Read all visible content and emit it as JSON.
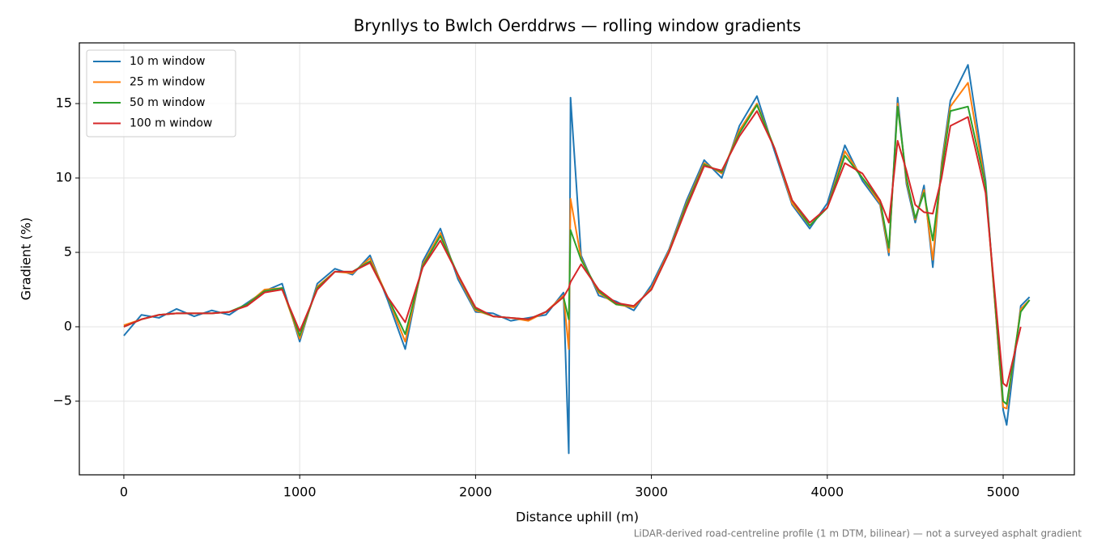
{
  "chart_data": {
    "type": "line",
    "title": "Brynllys to Bwlch Oerddrws — rolling window gradients",
    "x_label": "Distance uphill (m)",
    "y_label": "Gradient (%)",
    "footnote": "LiDAR-derived road-centreline profile (1 m DTM, bilinear) — not a surveyed asphalt gradient",
    "x": [
      0,
      100,
      200,
      300,
      400,
      500,
      600,
      700,
      800,
      900,
      1000,
      1100,
      1200,
      1300,
      1400,
      1500,
      1600,
      1700,
      1800,
      1900,
      2000,
      2100,
      2200,
      2300,
      2400,
      2500,
      2530,
      2540,
      2600,
      2700,
      2800,
      2900,
      3000,
      3100,
      3200,
      3300,
      3400,
      3500,
      3600,
      3700,
      3800,
      3900,
      4000,
      4100,
      4200,
      4300,
      4350,
      4400,
      4450,
      4500,
      4550,
      4600,
      4650,
      4700,
      4800,
      4900,
      5000,
      5020,
      5100,
      5150
    ],
    "series": [
      {
        "name": "10 m window",
        "color": "#1f77b4",
        "values": [
          -0.6,
          0.8,
          0.6,
          1.2,
          0.7,
          1.1,
          0.8,
          1.6,
          2.4,
          2.9,
          -1.0,
          2.9,
          3.9,
          3.5,
          4.8,
          1.8,
          -1.5,
          4.4,
          6.6,
          3.2,
          1.0,
          0.9,
          0.4,
          0.6,
          0.8,
          2.3,
          -8.5,
          15.4,
          4.8,
          2.1,
          1.7,
          1.1,
          2.8,
          5.2,
          8.5,
          11.2,
          10.0,
          13.5,
          15.5,
          11.8,
          8.2,
          6.6,
          8.3,
          12.2,
          9.8,
          8.2,
          4.8,
          15.4,
          9.6,
          7.0,
          9.5,
          4.0,
          11.0,
          15.2,
          17.6,
          9.8,
          -5.6,
          -6.6,
          1.4,
          2.0
        ]
      },
      {
        "name": "25 m window",
        "color": "#ff7f0e",
        "values": [
          0.1,
          0.5,
          0.8,
          0.9,
          0.9,
          0.9,
          1.0,
          1.5,
          2.5,
          2.6,
          -0.8,
          2.7,
          3.7,
          3.6,
          4.6,
          2.0,
          -1.0,
          4.2,
          6.3,
          3.4,
          1.1,
          0.7,
          0.6,
          0.4,
          1.0,
          2.1,
          -1.5,
          8.6,
          4.6,
          2.3,
          1.5,
          1.3,
          2.6,
          5.1,
          8.3,
          11.0,
          10.3,
          13.2,
          15.0,
          12.0,
          8.3,
          6.8,
          8.0,
          11.8,
          10.0,
          8.3,
          5.0,
          15.0,
          9.8,
          7.2,
          9.2,
          4.5,
          10.8,
          14.8,
          16.4,
          9.5,
          -5.4,
          -5.5,
          1.2,
          1.8
        ]
      },
      {
        "name": "50 m window",
        "color": "#2ca02c",
        "values": [
          0.0,
          0.5,
          0.8,
          0.9,
          0.9,
          0.9,
          1.0,
          1.5,
          2.4,
          2.6,
          -0.6,
          2.6,
          3.7,
          3.7,
          4.4,
          2.0,
          -0.5,
          4.1,
          6.1,
          3.5,
          1.2,
          0.7,
          0.6,
          0.5,
          1.0,
          2.0,
          0.5,
          6.5,
          4.5,
          2.4,
          1.5,
          1.4,
          2.5,
          5.0,
          8.2,
          10.9,
          10.4,
          13.0,
          14.9,
          12.0,
          8.5,
          6.8,
          8.0,
          11.5,
          10.0,
          8.5,
          5.3,
          14.8,
          10.0,
          7.3,
          9.0,
          5.8,
          10.5,
          14.5,
          14.8,
          9.5,
          -5.0,
          -5.2,
          1.0,
          1.8
        ]
      },
      {
        "name": "100 m window",
        "color": "#d62728",
        "values": [
          0.0,
          0.5,
          0.8,
          0.9,
          0.9,
          0.9,
          1.0,
          1.4,
          2.3,
          2.5,
          -0.3,
          2.5,
          3.7,
          3.7,
          4.3,
          2.0,
          0.3,
          4.0,
          5.8,
          3.5,
          1.3,
          0.7,
          0.6,
          0.5,
          1.0,
          2.0,
          2.6,
          3.0,
          4.2,
          2.5,
          1.6,
          1.4,
          2.5,
          5.0,
          8.0,
          10.8,
          10.5,
          12.8,
          14.5,
          12.0,
          8.5,
          7.0,
          8.0,
          11.0,
          10.3,
          8.5,
          7.0,
          12.5,
          10.5,
          8.2,
          7.7,
          7.6,
          10.0,
          13.5,
          14.1,
          9.0,
          -3.8,
          -4.0,
          0.0,
          null
        ]
      }
    ],
    "xlim": [
      -253,
      5405
    ],
    "ylim": [
      -9.95,
      19.08
    ],
    "xticks": [
      0,
      1000,
      2000,
      3000,
      4000,
      5000
    ],
    "yticks": [
      {
        "value": -5,
        "label": "−5"
      },
      0,
      5,
      10,
      15
    ],
    "grid": true,
    "legend": "upper-left"
  }
}
